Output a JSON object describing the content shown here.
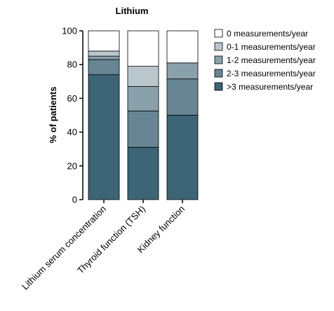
{
  "chart_data": {
    "type": "bar",
    "stacked": true,
    "title": "Lithium",
    "xlabel": "",
    "ylabel": "% of patients",
    "ylim": [
      0,
      100
    ],
    "yticks": [
      0,
      20,
      40,
      60,
      80,
      100
    ],
    "grid": false,
    "legend_position": "right",
    "categories": [
      "Lithium serum concentration",
      "Thyroid function (TSH)",
      "Kidney function"
    ],
    "series": [
      {
        "name": ">3 measurements/year",
        "color": "#3d6576",
        "values": [
          74,
          31,
          50
        ]
      },
      {
        "name": "2-3 measurements/year",
        "color": "#678592",
        "values": [
          9,
          21.5,
          21.5
        ]
      },
      {
        "name": "1-2 measurements/year",
        "color": "#8aa1ab",
        "values": [
          2,
          14.5,
          9.5
        ]
      },
      {
        "name": "0-1 measurements/year",
        "color": "#b9c7cd",
        "values": [
          3,
          12,
          0
        ]
      },
      {
        "name": "0 measurements/year",
        "color": "#ffffff",
        "values": [
          12,
          21,
          19
        ]
      }
    ],
    "legend_order": [
      "0 measurements/year",
      "0-1 measurements/year",
      "1-2 measurements/year",
      "2-3 measurements/year",
      ">3 measurements/year"
    ]
  }
}
